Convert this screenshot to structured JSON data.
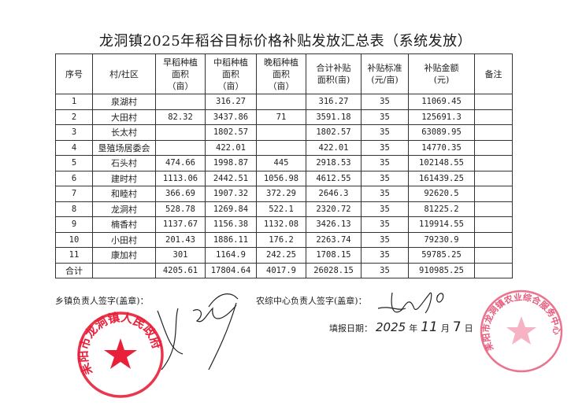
{
  "title": "龙洞镇2025年稻谷目标价格补贴发放汇总表（系统发放）",
  "table": {
    "headers": [
      "序号",
      "村/社区",
      "早稻种植\n面积\n（亩）",
      "中稻种植\n面积\n（亩）",
      "晚稻种植\n面积\n（亩）",
      "合计补贴\n面积(亩)",
      "补贴标准\n(元/亩)",
      "补贴金额\n(元)",
      "备注"
    ],
    "rows": [
      [
        "1",
        "泉湖村",
        "",
        "316.27",
        "",
        "316.27",
        "35",
        "11069.45",
        ""
      ],
      [
        "2",
        "大田村",
        "82.32",
        "3437.86",
        "71",
        "3591.18",
        "35",
        "125691.3",
        ""
      ],
      [
        "3",
        "长太村",
        "",
        "1802.57",
        "",
        "1802.57",
        "35",
        "63089.95",
        ""
      ],
      [
        "4",
        "垦殖场居委会",
        "",
        "422.01",
        "",
        "422.01",
        "35",
        "14770.35",
        ""
      ],
      [
        "5",
        "石头村",
        "474.66",
        "1998.87",
        "445",
        "2918.53",
        "35",
        "102148.55",
        ""
      ],
      [
        "6",
        "建时村",
        "1113.06",
        "2442.51",
        "1056.98",
        "4612.55",
        "35",
        "161439.25",
        ""
      ],
      [
        "7",
        "和睦村",
        "366.69",
        "1907.32",
        "372.29",
        "2646.3",
        "35",
        "92620.5",
        ""
      ],
      [
        "8",
        "龙洞村",
        "528.78",
        "1269.84",
        "522.1",
        "2320.72",
        "35",
        "81225.2",
        ""
      ],
      [
        "9",
        "楠香村",
        "1137.67",
        "1156.38",
        "1132.08",
        "3426.13",
        "35",
        "119914.55",
        ""
      ],
      [
        "10",
        "小田村",
        "201.43",
        "1886.11",
        "176.2",
        "2263.74",
        "35",
        "79230.9",
        ""
      ],
      [
        "11",
        "康加村",
        "301",
        "1164.9",
        "242.25",
        "1708.15",
        "35",
        "59785.25",
        ""
      ],
      [
        "合计",
        "",
        "4205.61",
        "17804.64",
        "4017.9",
        "26028.15",
        "35",
        "910985.25",
        ""
      ]
    ]
  },
  "footer": {
    "town_sign_label": "乡镇负责人签字(盖章)：",
    "center_sign_label": "农综中心负责人签字(盖章)：",
    "date_label": "填报日期：",
    "date_year": "2025",
    "date_year_unit": "年",
    "date_month": "11",
    "date_month_unit": "月",
    "date_day": "7",
    "date_day_unit": "日"
  },
  "stamps": {
    "left_text": "耒阳市龙洞镇人民政府",
    "right_text": "耒阳市龙洞镇农业综合服务中心",
    "left_color": "#e8203a",
    "right_color": "#e85a7a"
  }
}
